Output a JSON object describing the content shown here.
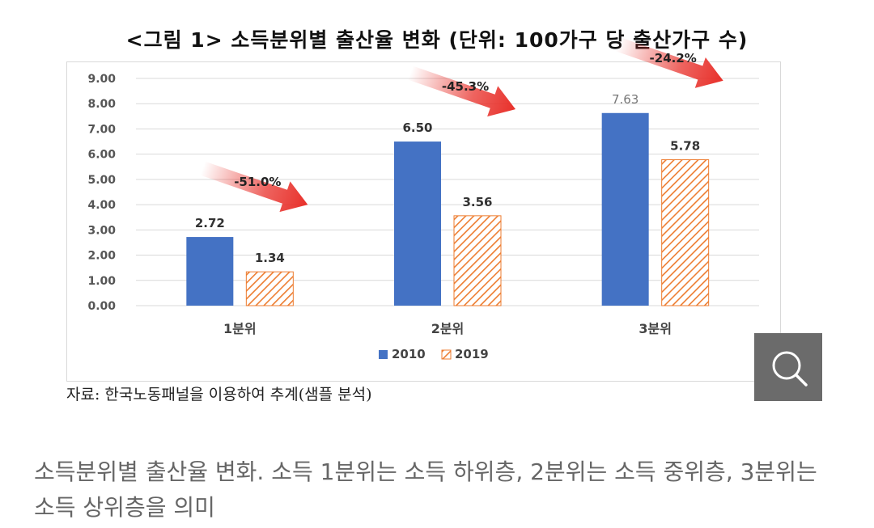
{
  "figure": {
    "title": "<그림 1> 소득분위별 출산율 변화 (단위: 100가구 당 출산가구 수)",
    "source": "자료: 한국노동패널을 이용하여 추계(샘플 분석)",
    "zoom_icon": "magnifier-icon"
  },
  "caption": "소득분위별 출산율 변화. 소득 1분위는 소득 하위층, 2분위는 소득 중위층, 3분위는 소득 상위층을 의미",
  "chart_data": {
    "type": "bar",
    "categories": [
      "1분위",
      "2분위",
      "3분위"
    ],
    "series": [
      {
        "name": "2010",
        "values": [
          2.72,
          6.5,
          7.63
        ],
        "color": "#4472c4",
        "pattern": "solid"
      },
      {
        "name": "2019",
        "values": [
          1.34,
          3.56,
          5.78
        ],
        "color": "#ed7d31",
        "pattern": "diagonal-hatch"
      }
    ],
    "data_labels": [
      [
        "2.72",
        "6.50",
        "7.63"
      ],
      [
        "1.34",
        "3.56",
        "5.78"
      ]
    ],
    "annotations": [
      "-51.0%",
      "-45.3%",
      "-24.2%"
    ],
    "annotation_color": "#e8302a",
    "y_ticks": [
      "0.00",
      "1.00",
      "2.00",
      "3.00",
      "4.00",
      "5.00",
      "6.00",
      "7.00",
      "8.00",
      "9.00"
    ],
    "ylim": [
      0,
      9
    ],
    "grid": true,
    "legend_position": "bottom-center",
    "xlabel": "",
    "ylabel": ""
  }
}
